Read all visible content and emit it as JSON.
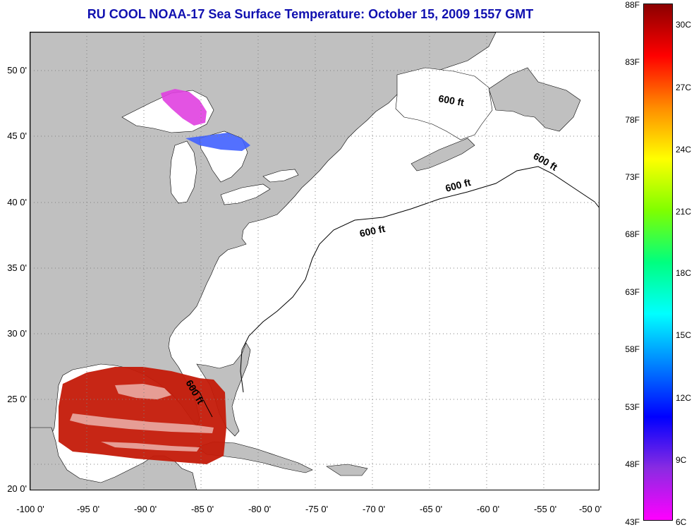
{
  "title": "RU COOL  NOAA-17  Sea Surface Temperature:  October 15, 2009 1557 GMT",
  "map": {
    "lat_labels": [
      "50 0'",
      "45 0'",
      "40 0'",
      "35 0'",
      "30 0'",
      "25 0'",
      "20 0'"
    ],
    "lon_labels": [
      "-100 0'",
      "-95 0'",
      "-90 0'",
      "-85 0'",
      "-80 0'",
      "-75 0'",
      "-70 0'",
      "-65 0'",
      "-60 0'",
      "-55 0'",
      "-50 0'"
    ],
    "contour_labels": [
      "600 ft",
      "600 ft",
      "600 ft",
      "600 ft",
      "600 ft"
    ],
    "land_color": "#c0c0c0",
    "ocean_color": "#ffffff",
    "sst_color": "#c8200a"
  },
  "colorbar": {
    "fahrenheit": [
      "88F",
      "83F",
      "78F",
      "73F",
      "68F",
      "63F",
      "58F",
      "53F",
      "48F",
      "43F"
    ],
    "celsius": [
      "30C",
      "27C",
      "24C",
      "21C",
      "18C",
      "15C",
      "12C",
      "9C",
      "6C"
    ],
    "colors": [
      "#8b0000",
      "#ff0000",
      "#ff8c00",
      "#ffff00",
      "#7fff00",
      "#00ff7f",
      "#00ffff",
      "#0080ff",
      "#0000ff",
      "#8a2be2",
      "#ff00ff"
    ]
  }
}
